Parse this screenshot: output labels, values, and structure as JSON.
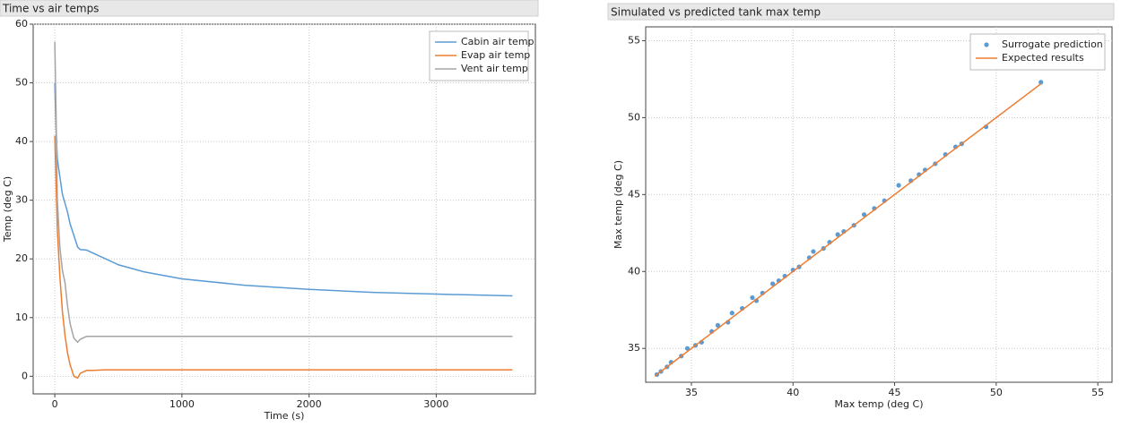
{
  "chart_data": [
    {
      "type": "line",
      "title": "Time vs air temps",
      "xlabel": "Time (s)",
      "ylabel": "Temp (deg C)",
      "x": [
        0,
        10,
        20,
        40,
        60,
        80,
        100,
        120,
        150,
        180,
        200,
        250,
        300,
        400,
        500,
        700,
        1000,
        1500,
        2000,
        2500,
        3000,
        3600
      ],
      "series": [
        {
          "name": "Cabin air temp",
          "color": "#5b9bd5",
          "mode": "line",
          "values": [
            50,
            42,
            37,
            34,
            31,
            29.5,
            28,
            26,
            24,
            22,
            21.6,
            21.5,
            21,
            20,
            19,
            17.8,
            16.6,
            15.5,
            14.8,
            14.3,
            14,
            13.7
          ]
        },
        {
          "name": "Evap air temp",
          "color": "#ed7d31",
          "mode": "line",
          "values": [
            41,
            33,
            25,
            17,
            11,
            7,
            4,
            2,
            0,
            -0.3,
            0.5,
            1,
            1,
            1.1,
            1.1,
            1.1,
            1.1,
            1.1,
            1.1,
            1.1,
            1.1,
            1.1
          ]
        },
        {
          "name": "Vent air temp",
          "color": "#a5a5a5",
          "mode": "line",
          "values": [
            57,
            45,
            30,
            22,
            18,
            16,
            12,
            9,
            6.5,
            5.8,
            6.3,
            6.8,
            6.8,
            6.8,
            6.8,
            6.8,
            6.8,
            6.8,
            6.8,
            6.8,
            6.8,
            6.8
          ]
        }
      ],
      "xlim": [
        -170,
        3780
      ],
      "ylim": [
        -3,
        60
      ],
      "xticks": [
        0,
        1000,
        2000,
        3000
      ],
      "yticks": [
        0,
        10,
        20,
        30,
        40,
        50,
        60
      ],
      "grid": true,
      "legend": "upper right"
    },
    {
      "type": "scatter",
      "title": "Simulated vs predicted tank max temp",
      "xlabel": "Max temp (deg C)",
      "ylabel": "Max temp (deg C)",
      "series": [
        {
          "name": "Surrogate prediction",
          "color": "#5b9bd5",
          "mode": "markers",
          "x": [
            33.3,
            33.5,
            33.8,
            34.0,
            34.5,
            34.8,
            35.2,
            35.5,
            36.0,
            36.3,
            36.8,
            37.0,
            37.5,
            38.0,
            38.2,
            38.5,
            39.0,
            39.3,
            39.6,
            40.0,
            40.3,
            40.8,
            41.0,
            41.5,
            41.8,
            42.2,
            42.5,
            43.0,
            43.5,
            44.0,
            44.5,
            45.2,
            45.8,
            46.2,
            46.5,
            47.0,
            47.5,
            48.0,
            48.3,
            49.5,
            52.2
          ],
          "values": [
            33.3,
            33.5,
            33.8,
            34.1,
            34.5,
            35.0,
            35.2,
            35.4,
            36.1,
            36.5,
            36.7,
            37.3,
            37.6,
            38.3,
            38.1,
            38.6,
            39.2,
            39.4,
            39.7,
            40.1,
            40.3,
            40.9,
            41.3,
            41.5,
            41.9,
            42.4,
            42.6,
            43.0,
            43.7,
            44.1,
            44.6,
            45.6,
            45.9,
            46.3,
            46.6,
            47.0,
            47.6,
            48.1,
            48.3,
            49.4,
            52.3
          ]
        },
        {
          "name": "Expected results",
          "color": "#ed7d31",
          "mode": "line",
          "x": [
            33.2,
            52.2
          ],
          "values": [
            33.2,
            52.2
          ]
        }
      ],
      "xlim": [
        32.75,
        55.7
      ],
      "ylim": [
        32.8,
        55.9
      ],
      "xticks": [
        35,
        40,
        45,
        50,
        55
      ],
      "yticks": [
        35,
        40,
        45,
        50,
        55
      ],
      "grid": true,
      "legend": "upper right"
    }
  ]
}
